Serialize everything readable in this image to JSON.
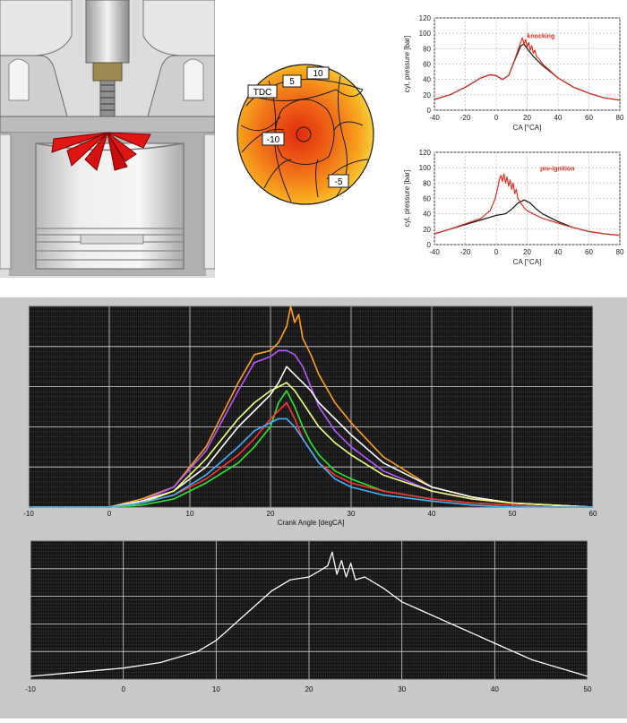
{
  "flame_map": {
    "labels": [
      "TDC",
      "5",
      "10",
      "-10",
      "-5"
    ],
    "colors": {
      "outer": "#f5e64a",
      "mid": "#f7a21b",
      "inner": "#e53010",
      "contour": "#1a1a1a"
    }
  },
  "chart_data": [
    {
      "type": "line",
      "id": "knocking",
      "xlabel": "CA [°CA]",
      "ylabel": "cyl. pressure [bar]",
      "xlim": [
        -40,
        80
      ],
      "ylim": [
        0,
        120
      ],
      "xticks": [
        -40,
        -20,
        0,
        20,
        40,
        60,
        80
      ],
      "yticks": [
        0,
        20,
        40,
        60,
        80,
        100,
        120
      ],
      "grid": true,
      "annotation": "knocking",
      "series": [
        {
          "color": "#111111",
          "x": [
            -40,
            -30,
            -20,
            -10,
            -4,
            0,
            4,
            8,
            12,
            16,
            18,
            20,
            24,
            30,
            40,
            50,
            60,
            70,
            80
          ],
          "y": [
            14,
            20,
            30,
            42,
            46,
            45,
            40,
            45,
            65,
            84,
            86,
            80,
            70,
            58,
            42,
            30,
            22,
            16,
            13
          ]
        },
        {
          "color": "#e03020",
          "x": [
            -40,
            -30,
            -20,
            -10,
            -4,
            0,
            4,
            8,
            12,
            15,
            17,
            18,
            19,
            20,
            21,
            22,
            23,
            24,
            25,
            26,
            28,
            30,
            40,
            50,
            60,
            70,
            80
          ],
          "y": [
            14,
            20,
            30,
            42,
            46,
            45,
            40,
            45,
            66,
            84,
            94,
            86,
            92,
            82,
            88,
            78,
            84,
            74,
            78,
            70,
            66,
            60,
            42,
            30,
            22,
            16,
            13
          ]
        }
      ]
    },
    {
      "type": "line",
      "id": "pre-ignition",
      "xlabel": "CA [°CA]",
      "ylabel": "cyl. pressure [bar]",
      "xlim": [
        -40,
        80
      ],
      "ylim": [
        0,
        120
      ],
      "xticks": [
        -40,
        -20,
        0,
        20,
        40,
        60,
        80
      ],
      "yticks": [
        0,
        20,
        40,
        60,
        80,
        100,
        120
      ],
      "grid": true,
      "annotation": "pre-ignition",
      "series": [
        {
          "color": "#111111",
          "x": [
            -40,
            -30,
            -20,
            -10,
            0,
            6,
            10,
            14,
            18,
            22,
            26,
            30,
            40,
            50,
            60,
            70,
            80
          ],
          "y": [
            14,
            20,
            26,
            32,
            38,
            40,
            46,
            54,
            58,
            54,
            46,
            40,
            30,
            22,
            17,
            14,
            12
          ]
        },
        {
          "color": "#e03020",
          "x": [
            -40,
            -30,
            -20,
            -10,
            -4,
            -1,
            1,
            2,
            3,
            4,
            5,
            6,
            7,
            8,
            9,
            10,
            11,
            12,
            13,
            14,
            16,
            18,
            20,
            24,
            30,
            40,
            50,
            60,
            70,
            80
          ],
          "y": [
            14,
            20,
            27,
            34,
            44,
            58,
            74,
            84,
            90,
            82,
            92,
            80,
            88,
            76,
            84,
            72,
            80,
            66,
            72,
            60,
            54,
            48,
            44,
            40,
            34,
            28,
            22,
            17,
            14,
            12
          ]
        }
      ]
    },
    {
      "type": "line",
      "id": "multi-cycle",
      "xlabel": "Crank Angle [degCA]",
      "xlim": [
        -10,
        60
      ],
      "ylim": [
        0,
        100
      ],
      "xticks": [
        -10,
        0,
        10,
        20,
        30,
        40,
        50,
        60
      ],
      "grid": true,
      "series": [
        {
          "color": "#ff9f1f",
          "x": [
            -10,
            0,
            4,
            8,
            12,
            16,
            18,
            20,
            21,
            22,
            22.5,
            23,
            23.5,
            24,
            25,
            26,
            28,
            30,
            34,
            40,
            45,
            50,
            55,
            60
          ],
          "y": [
            0,
            0,
            4,
            10,
            30,
            62,
            76,
            78,
            82,
            90,
            100,
            92,
            96,
            84,
            76,
            66,
            52,
            42,
            25,
            10,
            5,
            2,
            1,
            0
          ]
        },
        {
          "color": "#b657ff",
          "x": [
            -10,
            0,
            4,
            8,
            12,
            16,
            18,
            20,
            21,
            22,
            23,
            24,
            25,
            26,
            28,
            30,
            34,
            40,
            45,
            50,
            55,
            60
          ],
          "y": [
            0,
            0,
            3,
            10,
            28,
            58,
            72,
            75,
            78,
            78,
            76,
            70,
            60,
            50,
            38,
            30,
            18,
            8,
            4,
            2,
            1,
            0
          ]
        },
        {
          "color": "#ffffff",
          "x": [
            -10,
            0,
            4,
            8,
            12,
            16,
            18,
            20,
            21,
            22,
            23,
            24,
            25,
            26,
            28,
            30,
            34,
            40,
            45,
            50,
            55,
            60
          ],
          "y": [
            0,
            0,
            3,
            8,
            20,
            40,
            48,
            56,
            62,
            70,
            66,
            62,
            58,
            52,
            44,
            36,
            22,
            10,
            5,
            2,
            1,
            0
          ]
        },
        {
          "color": "#f2ff7a",
          "x": [
            -10,
            0,
            4,
            8,
            12,
            16,
            18,
            20,
            21,
            22,
            23,
            24,
            25,
            26,
            28,
            30,
            34,
            40,
            45,
            50,
            55,
            60
          ],
          "y": [
            0,
            0,
            2,
            8,
            24,
            44,
            52,
            58,
            60,
            62,
            58,
            52,
            46,
            40,
            32,
            26,
            16,
            8,
            4,
            2,
            1,
            0
          ]
        },
        {
          "color": "#2de62d",
          "x": [
            -10,
            0,
            4,
            8,
            12,
            16,
            18,
            20,
            21,
            22,
            23,
            24,
            25,
            26,
            28,
            30,
            34,
            40,
            45,
            50,
            55,
            60
          ],
          "y": [
            0,
            0,
            1,
            4,
            12,
            22,
            30,
            40,
            52,
            58,
            50,
            40,
            32,
            26,
            18,
            14,
            8,
            4,
            2,
            1,
            0,
            0
          ]
        },
        {
          "color": "#ff3030",
          "x": [
            -10,
            0,
            4,
            8,
            12,
            16,
            18,
            20,
            21,
            22,
            23,
            24,
            25,
            26,
            28,
            30,
            34,
            40,
            45,
            50,
            55,
            60
          ],
          "y": [
            0,
            0,
            2,
            6,
            14,
            26,
            34,
            44,
            48,
            52,
            44,
            34,
            28,
            22,
            16,
            12,
            8,
            4,
            2,
            1,
            0,
            0
          ]
        },
        {
          "color": "#3fb3ff",
          "x": [
            -10,
            0,
            4,
            8,
            12,
            16,
            18,
            20,
            21,
            22,
            23,
            24,
            25,
            26,
            28,
            30,
            34,
            40,
            45,
            50,
            55,
            60
          ],
          "y": [
            0,
            0,
            2,
            6,
            16,
            30,
            38,
            42,
            44,
            44,
            40,
            34,
            28,
            22,
            14,
            10,
            6,
            3,
            1,
            0,
            0,
            0
          ]
        }
      ]
    },
    {
      "type": "line",
      "id": "single-cycle",
      "xlim": [
        -10,
        50
      ],
      "ylim": [
        0,
        100
      ],
      "xticks": [
        -10,
        0,
        10,
        20,
        30,
        40,
        50
      ],
      "grid": true,
      "series": [
        {
          "color": "#ffffff",
          "x": [
            -10,
            -5,
            0,
            4,
            8,
            10,
            12,
            14,
            16,
            18,
            20,
            21,
            22,
            22.5,
            23,
            23.5,
            24,
            24.5,
            25,
            26,
            28,
            30,
            32,
            34,
            36,
            38,
            40,
            42,
            44,
            46,
            48,
            50
          ],
          "y": [
            2,
            5,
            8,
            12,
            20,
            28,
            40,
            52,
            64,
            72,
            74,
            78,
            82,
            92,
            76,
            86,
            74,
            84,
            72,
            74,
            66,
            56,
            50,
            44,
            38,
            32,
            26,
            20,
            14,
            10,
            6,
            2
          ]
        }
      ]
    }
  ]
}
